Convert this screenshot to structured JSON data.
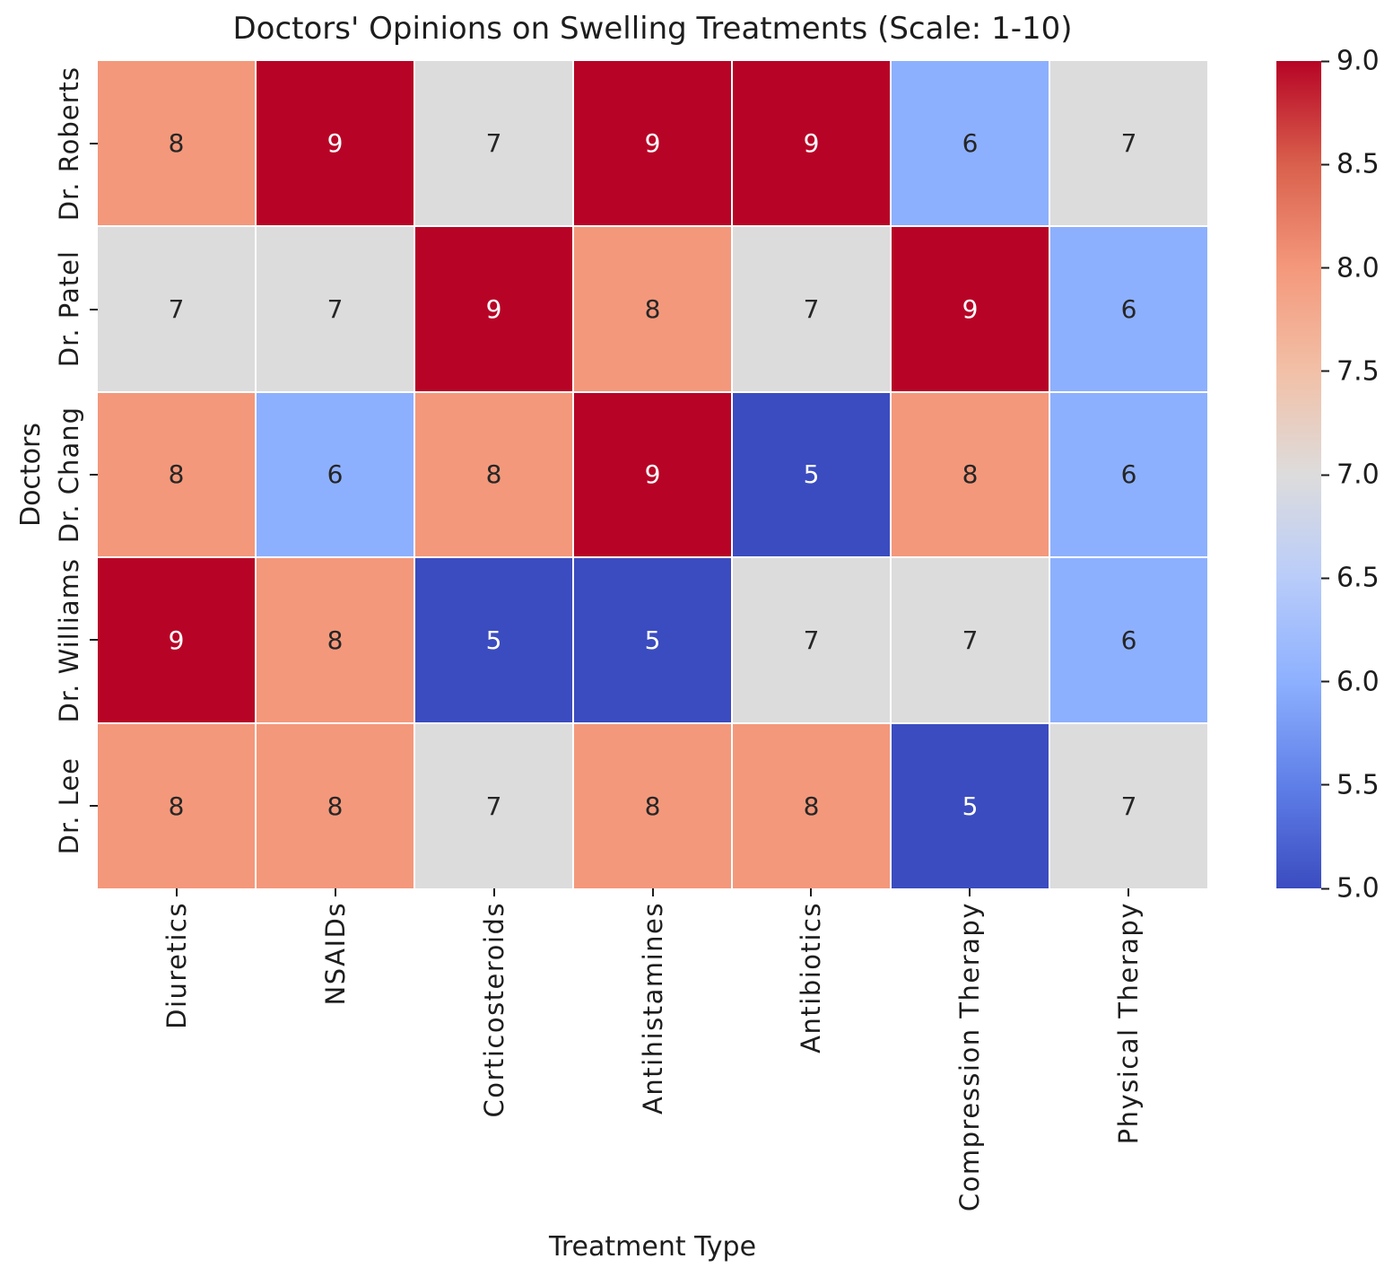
{
  "chart_data": {
    "type": "heatmap",
    "title": "Doctors' Opinions on Swelling Treatments (Scale: 1-10)",
    "xlabel": "Treatment Type",
    "ylabel": "Doctors",
    "categories_x": [
      "Diuretics",
      "NSAIDs",
      "Corticosteroids",
      "Antihistamines",
      "Antibiotics",
      "Compression Therapy",
      "Physical Therapy"
    ],
    "categories_y": [
      "Dr. Roberts",
      "Dr. Patel",
      "Dr. Chang",
      "Dr. Williams",
      "Dr. Lee"
    ],
    "values": [
      [
        8,
        9,
        7,
        9,
        9,
        6,
        7
      ],
      [
        7,
        7,
        9,
        8,
        7,
        9,
        6
      ],
      [
        8,
        6,
        8,
        9,
        5,
        8,
        6
      ],
      [
        9,
        8,
        5,
        5,
        7,
        7,
        6
      ],
      [
        8,
        8,
        7,
        8,
        8,
        5,
        7
      ]
    ],
    "colormap": "coolwarm",
    "vmin": 5,
    "vmax": 9,
    "grid": false,
    "legend_position": "right-colorbar",
    "colorbar_ticks": [
      "9.0",
      "8.5",
      "8.0",
      "7.5",
      "7.0",
      "6.5",
      "6.0",
      "5.5",
      "5.0"
    ],
    "value_colors": {
      "5": "#3B4CC0",
      "6": "#8DB0FE",
      "7": "#DDDCDC",
      "8": "#F4987B",
      "9": "#B70426"
    },
    "colormap_stops": [
      {
        "pos": 0,
        "color": "#3B4CC0"
      },
      {
        "pos": 12.5,
        "color": "#5F7FE8"
      },
      {
        "pos": 25,
        "color": "#8DB0FE"
      },
      {
        "pos": 37.5,
        "color": "#B9CCFA"
      },
      {
        "pos": 50,
        "color": "#DDDCDC"
      },
      {
        "pos": 62.5,
        "color": "#F2C0A7"
      },
      {
        "pos": 75,
        "color": "#F4987B"
      },
      {
        "pos": 87.5,
        "color": "#D9604C"
      },
      {
        "pos": 100,
        "color": "#B70426"
      }
    ],
    "annotation_text_dark": "#262626",
    "annotation_text_light": "#ffffff"
  }
}
